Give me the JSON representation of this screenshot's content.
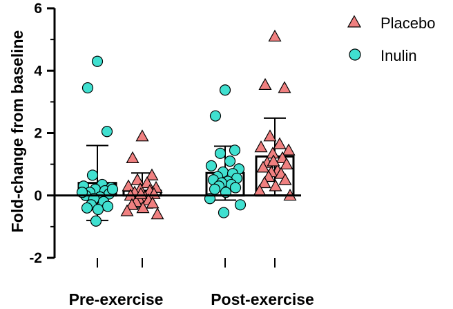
{
  "chart_data": {
    "type": "bar",
    "title": "",
    "xlabel": "",
    "ylabel": "Fold-change from baseline",
    "ylim": [
      -2,
      6
    ],
    "yticks": [
      "-2",
      "0",
      "2",
      "4",
      "6"
    ],
    "group_labels": [
      "Pre-exercise",
      "Post-exercise"
    ],
    "legend": [
      {
        "name": "Placebo",
        "marker": "triangle",
        "color": "#F08080"
      },
      {
        "name": "Inulin",
        "marker": "circle",
        "color": "#40E0D0"
      }
    ],
    "bars": [
      {
        "group": "Pre-exercise",
        "series": "Inulin",
        "marker": "circle",
        "mean": 0.4,
        "error_upper": 1.6,
        "error_lower": -0.8,
        "points": [
          4.3,
          3.45,
          2.05,
          0.65,
          0.35,
          0.3,
          0.25,
          0.2,
          0.15,
          0.1,
          0.05,
          0.0,
          -0.05,
          -0.1,
          -0.2,
          -0.3,
          -0.35,
          -0.4,
          -0.45,
          0.1,
          0.2,
          -0.82
        ]
      },
      {
        "group": "Pre-exercise",
        "series": "Placebo",
        "marker": "triangle",
        "mean": 0.15,
        "error_upper": 0.72,
        "error_lower": -0.4,
        "points": [
          1.9,
          1.2,
          0.65,
          0.5,
          0.4,
          0.3,
          0.25,
          0.2,
          0.15,
          0.1,
          0.05,
          0.0,
          -0.05,
          -0.1,
          -0.15,
          -0.2,
          -0.25,
          -0.3,
          -0.4,
          -0.5,
          -0.6,
          0.05
        ]
      },
      {
        "group": "Post-exercise",
        "series": "Inulin",
        "marker": "circle",
        "mean": 0.72,
        "error_upper": 1.58,
        "error_lower": -0.15,
        "points": [
          3.38,
          2.55,
          1.45,
          1.35,
          1.1,
          0.95,
          0.85,
          0.75,
          0.7,
          0.6,
          0.55,
          0.5,
          0.45,
          0.4,
          0.35,
          0.3,
          0.25,
          0.2,
          0.1,
          -0.1,
          -0.3,
          -0.55
        ]
      },
      {
        "group": "Post-exercise",
        "series": "Placebo",
        "marker": "triangle",
        "mean": 1.25,
        "error_upper": 2.48,
        "error_lower": 0.0,
        "points": [
          5.1,
          3.55,
          3.45,
          1.9,
          1.65,
          1.55,
          1.45,
          1.35,
          1.2,
          1.05,
          1.0,
          0.9,
          0.8,
          0.75,
          0.7,
          0.6,
          0.5,
          0.4,
          0.3,
          0.15,
          0.0,
          1.1
        ]
      }
    ]
  }
}
